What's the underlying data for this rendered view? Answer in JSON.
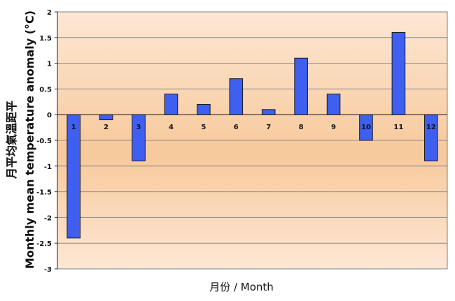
{
  "chart_data": {
    "type": "bar",
    "title": "",
    "xlabel": "月份 / Month",
    "ylabel_zh": "月平均氣溫距平",
    "ylabel_en": "Monthly mean temperature anomaly (°C)",
    "categories": [
      "1",
      "2",
      "3",
      "4",
      "5",
      "6",
      "7",
      "8",
      "9",
      "10",
      "11",
      "12"
    ],
    "values": [
      -2.4,
      -0.1,
      -0.9,
      0.4,
      0.2,
      0.7,
      0.1,
      1.1,
      0.4,
      -0.5,
      1.6,
      -0.9
    ],
    "ylim": [
      -3,
      2
    ],
    "yticks": [
      "2",
      "1.5",
      "1",
      "0.5",
      "0",
      "-0.5",
      "-1",
      "-1.5",
      "-2",
      "-2.5",
      "-3"
    ],
    "grid": true,
    "legend": "none",
    "colors": {
      "bar": "#3f5ff0",
      "bar_edge": "#1a1a1a",
      "plot_bg_top": "#fde7d5",
      "plot_bg_mid": "#f7c99b",
      "gridline": "#8a8a8a"
    }
  }
}
